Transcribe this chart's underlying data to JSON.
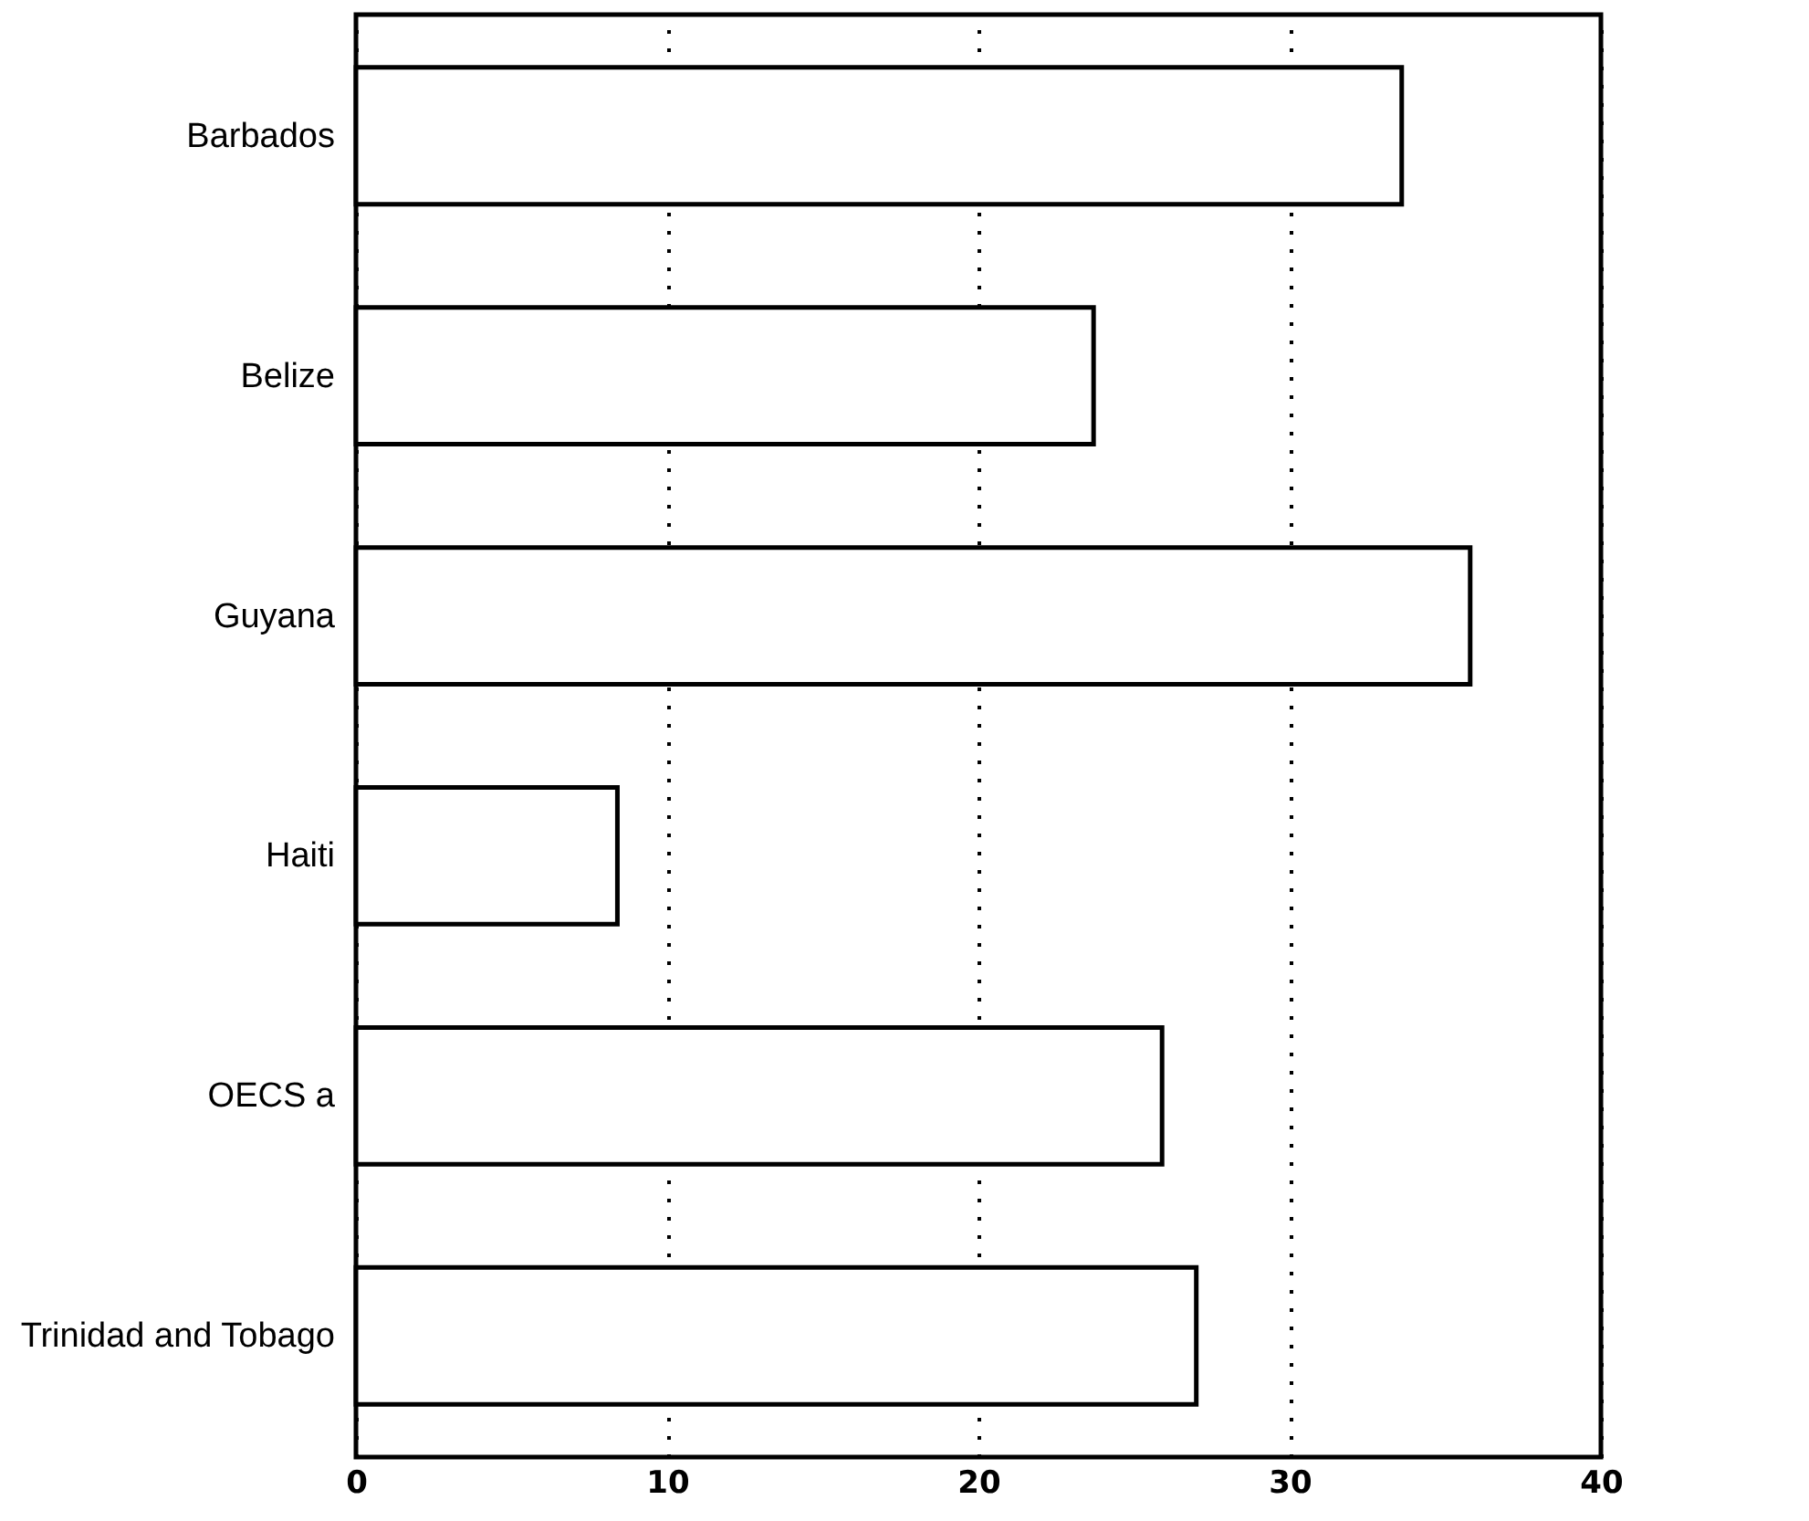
{
  "chart_data": {
    "type": "bar",
    "orientation": "horizontal",
    "categories": [
      "Barbados",
      "Belize",
      "Guyana",
      "Haiti",
      "OECS a",
      "Trinidad and Tobago"
    ],
    "values": [
      33.6,
      23.7,
      35.8,
      8.4,
      25.9,
      27.0
    ],
    "color": "#ffffff",
    "xlim": [
      0,
      40
    ],
    "xticks": [
      0,
      10,
      20,
      30,
      40
    ],
    "grid": "x"
  }
}
